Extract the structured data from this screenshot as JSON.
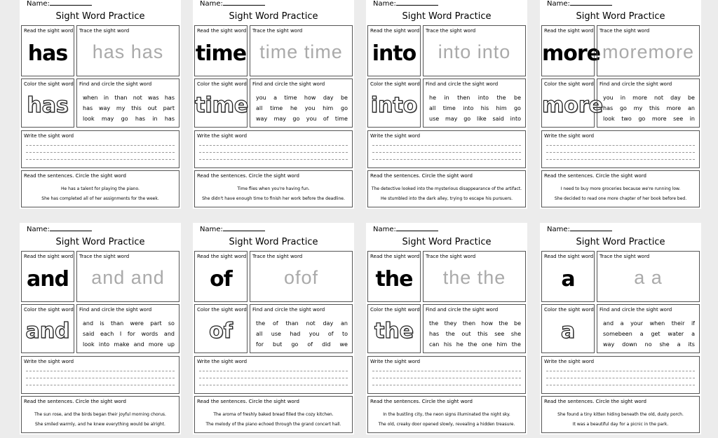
{
  "labels": {
    "name": "Name:",
    "title": "Sight Word Practice",
    "read": "Read the sight word",
    "trace": "Trace the sight word",
    "color": "Color the sight word",
    "find": "Find and circle the sight word",
    "write": "Write the sight word",
    "sentences": "Read the sentences. Circle the sight word"
  },
  "sheets": [
    {
      "word": "has",
      "trace": "has has",
      "find": [
        [
          "when",
          "in",
          "than",
          "not",
          "was",
          "has"
        ],
        [
          "has",
          "way",
          "my",
          "this",
          "out",
          "part"
        ],
        [
          "look",
          "may",
          "go",
          "has",
          "in",
          "has"
        ]
      ],
      "sentences": [
        "He has a talent for playing the piano.",
        "She has completed all of her assignments for the week."
      ]
    },
    {
      "word": "time",
      "trace": "time time",
      "find": [
        [
          "you",
          "a",
          "time",
          "how",
          "day",
          "be"
        ],
        [
          "all",
          "time",
          "he",
          "you",
          "him",
          "go"
        ],
        [
          "way",
          "may",
          "go",
          "you",
          "of",
          "time"
        ]
      ],
      "sentences": [
        "Time flies when you're having fun.",
        "She didn't have enough time to finish her work before the deadline."
      ]
    },
    {
      "word": "into",
      "trace": "into into",
      "find": [
        [
          "he",
          "in",
          "then",
          "into",
          "the",
          "be"
        ],
        [
          "all",
          "time",
          "into",
          "his",
          "him",
          "go"
        ],
        [
          "use",
          "may",
          "go",
          "like",
          "said",
          "into"
        ]
      ],
      "sentences": [
        "The detective looked into the mysterious disappearance of the artifact.",
        "He stumbled into the dark alley, trying to escape his pursuers."
      ]
    },
    {
      "word": "more",
      "trace": "moremore",
      "find": [
        [
          "you",
          "in",
          "more",
          "not",
          "day",
          "be"
        ],
        [
          "has",
          "go",
          "my",
          "this",
          "more",
          "an"
        ],
        [
          "look",
          "two",
          "go",
          "more",
          "see",
          "in"
        ]
      ],
      "sentences": [
        "I need to buy more groceries because we're running low.",
        "She decided to read one more chapter of her book before bed."
      ]
    },
    {
      "word": "and",
      "trace": "and and",
      "find": [
        [
          "and",
          "is",
          "than",
          "were",
          "part",
          "so"
        ],
        [
          "said",
          "each",
          "I",
          "for",
          "words",
          "and"
        ],
        [
          "look",
          "into",
          "make",
          "and",
          "more",
          "up"
        ]
      ],
      "sentences": [
        "The sun rose, and the birds began their joyful morning chorus.",
        "She smiled warmly, and he knew everything would be alright."
      ]
    },
    {
      "word": "of",
      "trace": "ofof",
      "find": [
        [
          "the",
          "of",
          "than",
          "not",
          "day",
          "an"
        ],
        [
          "all",
          "use",
          "had",
          "you",
          "of",
          "to"
        ],
        [
          "for",
          "but",
          "go",
          "of",
          "did",
          "we"
        ]
      ],
      "sentences": [
        "The aroma of freshly baked bread filled the cozy kitchen.",
        "The melody of the piano echoed through the grand concert hall."
      ]
    },
    {
      "word": "the",
      "trace": "the the",
      "find": [
        [
          "the",
          "they",
          "then",
          "how",
          "the",
          "be"
        ],
        [
          "has",
          "the",
          "out",
          "this",
          "see",
          "she"
        ],
        [
          "can",
          "his",
          "he",
          "the",
          "one",
          "him",
          "the"
        ]
      ],
      "sentences": [
        "In the bustling city, the neon signs illuminated the night sky.",
        "The old, creaky door opened slowly, revealing a hidden treasure."
      ]
    },
    {
      "word": "a",
      "trace": "a  a",
      "find": [
        [
          "and",
          "a",
          "your",
          "when",
          "their",
          "if"
        ],
        [
          "somebeen",
          "a",
          "get",
          "water",
          "a"
        ],
        [
          "way",
          "down",
          "no",
          "she",
          "a",
          "its"
        ]
      ],
      "sentences": [
        "She found a tiny kitten hiding beneath the old, dusty porch.",
        "It was a beautiful day for a picnic in the park."
      ]
    }
  ]
}
